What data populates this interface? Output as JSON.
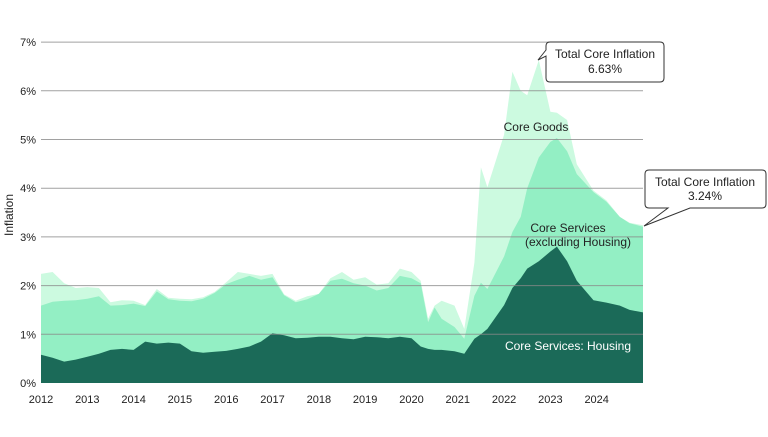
{
  "chart_data": {
    "type": "area",
    "stacked": true,
    "title": "",
    "xlabel": "",
    "ylabel": "Inflation",
    "ylim": [
      0,
      7
    ],
    "xlim": [
      2012,
      2025
    ],
    "grid": true,
    "y_ticks": [
      "0%",
      "1%",
      "2%",
      "3%",
      "4%",
      "5%",
      "6%",
      "7%"
    ],
    "x_ticks": [
      "2012",
      "2013",
      "2014",
      "2015",
      "2016",
      "2017",
      "2018",
      "2019",
      "2020",
      "2021",
      "2022",
      "2023",
      "2024"
    ],
    "x": [
      2012.0,
      2012.25,
      2012.5,
      2012.75,
      2013.0,
      2013.25,
      2013.5,
      2013.75,
      2014.0,
      2014.25,
      2014.5,
      2014.75,
      2015.0,
      2015.25,
      2015.5,
      2015.75,
      2016.0,
      2016.25,
      2016.5,
      2016.75,
      2017.0,
      2017.25,
      2017.5,
      2017.75,
      2018.0,
      2018.25,
      2018.5,
      2018.75,
      2019.0,
      2019.25,
      2019.5,
      2019.75,
      2020.0,
      2020.2,
      2020.36,
      2020.5,
      2020.65,
      2020.93,
      2021.14,
      2021.36,
      2021.5,
      2021.64,
      2022.0,
      2022.18,
      2022.36,
      2022.5,
      2022.75,
      2023.0,
      2023.14,
      2023.36,
      2023.57,
      2023.93,
      2024.21,
      2024.5,
      2024.71,
      2025.0
    ],
    "series": [
      {
        "name": "Core Services: Housing",
        "color": "#1b6a58",
        "values": [
          0.58,
          0.52,
          0.44,
          0.48,
          0.54,
          0.6,
          0.68,
          0.7,
          0.68,
          0.85,
          0.81,
          0.83,
          0.81,
          0.65,
          0.62,
          0.64,
          0.66,
          0.7,
          0.75,
          0.85,
          1.02,
          0.98,
          0.92,
          0.93,
          0.95,
          0.95,
          0.92,
          0.9,
          0.95,
          0.94,
          0.92,
          0.95,
          0.92,
          0.75,
          0.7,
          0.68,
          0.68,
          0.65,
          0.6,
          0.91,
          1.0,
          1.11,
          1.6,
          1.95,
          2.15,
          2.35,
          2.5,
          2.7,
          2.8,
          2.5,
          2.1,
          1.7,
          1.65,
          1.59,
          1.5,
          1.45
        ]
      },
      {
        "name": "Core Services (excluding Housing)",
        "label_lines": [
          "Core Services",
          "(excluding Housing)"
        ],
        "color": "#93efc4",
        "values": [
          1.01,
          1.15,
          1.25,
          1.22,
          1.19,
          1.18,
          0.91,
          0.9,
          0.95,
          0.73,
          1.07,
          0.89,
          0.88,
          1.03,
          1.11,
          1.21,
          1.37,
          1.42,
          1.45,
          1.27,
          1.15,
          0.82,
          0.74,
          0.79,
          0.88,
          1.15,
          1.22,
          1.15,
          1.05,
          0.96,
          1.03,
          1.25,
          1.23,
          1.3,
          0.55,
          0.87,
          0.64,
          0.5,
          0.31,
          0.88,
          1.06,
          0.82,
          1.0,
          1.15,
          1.26,
          1.65,
          2.13,
          2.25,
          2.23,
          2.26,
          2.19,
          2.22,
          2.07,
          1.82,
          1.78,
          1.76
        ]
      },
      {
        "name": "Core Goods",
        "color": "#ccfae0",
        "values": [
          0.65,
          0.61,
          0.36,
          0.25,
          0.24,
          0.17,
          0.07,
          0.1,
          0.06,
          0.02,
          0.05,
          0.03,
          0.04,
          0.04,
          0.03,
          0.02,
          0.04,
          0.16,
          0.04,
          0.08,
          0.07,
          0.02,
          0.03,
          0.06,
          0.0,
          0.05,
          0.14,
          0.07,
          0.17,
          0.12,
          0.1,
          0.15,
          0.13,
          0.05,
          0.07,
          0.04,
          0.37,
          0.44,
          0.2,
          0.68,
          2.37,
          2.09,
          2.5,
          3.29,
          2.59,
          1.91,
          2.0,
          0.62,
          0.52,
          0.64,
          0.2,
          0.03,
          0.03,
          0.0,
          0.01,
          0.03
        ]
      }
    ],
    "annotations": [
      {
        "title": "Total Core Inflation",
        "value": "6.63%",
        "x": 2022.75,
        "y": 6.63
      },
      {
        "title": "Total Core Inflation",
        "value": "3.24%",
        "x": 2025.0,
        "y": 3.24
      }
    ],
    "grid_color": "#8a8a8a"
  }
}
